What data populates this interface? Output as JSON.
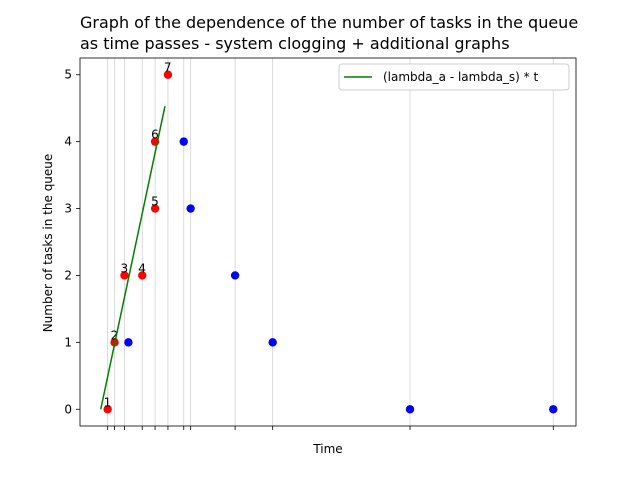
{
  "chart_data": {
    "type": "scatter",
    "title_lines": [
      "Graph of the dependence of the number of tasks in the queue",
      "as time passes - system clogging + additional graphs"
    ],
    "xlabel": "Time",
    "ylabel": "Number of tasks in the queue",
    "xlim": [
      -0.28,
      4.74
    ],
    "ylim": [
      -0.25,
      5.25
    ],
    "yticks": [
      0,
      1,
      2,
      3,
      4,
      5
    ],
    "xticks": [
      0.0,
      0.07,
      0.17,
      0.35,
      0.48,
      0.61,
      0.77,
      0.84,
      1.29,
      1.67,
      3.06,
      4.51
    ],
    "grid": "vertical",
    "legend_position": "top-right",
    "series": [
      {
        "kind": "points",
        "color": "#ff0000",
        "points": [
          {
            "x": 0.0,
            "y": 0,
            "label": "1"
          },
          {
            "x": 0.07,
            "y": 1,
            "label": "2"
          },
          {
            "x": 0.17,
            "y": 2,
            "label": "3"
          },
          {
            "x": 0.35,
            "y": 2,
            "label": "4"
          },
          {
            "x": 0.48,
            "y": 3,
            "label": "5"
          },
          {
            "x": 0.48,
            "y": 4,
            "label": "6"
          },
          {
            "x": 0.61,
            "y": 5,
            "label": "7"
          }
        ]
      },
      {
        "kind": "points",
        "color": "#0000ff",
        "points": [
          {
            "x": 0.21,
            "y": 1
          },
          {
            "x": 0.77,
            "y": 4
          },
          {
            "x": 0.84,
            "y": 3
          },
          {
            "x": 1.29,
            "y": 2
          },
          {
            "x": 1.67,
            "y": 1
          },
          {
            "x": 3.06,
            "y": 0
          },
          {
            "x": 4.51,
            "y": 0
          }
        ]
      },
      {
        "kind": "line",
        "name": "(lambda_a - lambda_s) * t",
        "color": "#008000",
        "points": [
          {
            "x": -0.07,
            "y": 0.0
          },
          {
            "x": 0.58,
            "y": 4.53
          }
        ]
      }
    ]
  }
}
